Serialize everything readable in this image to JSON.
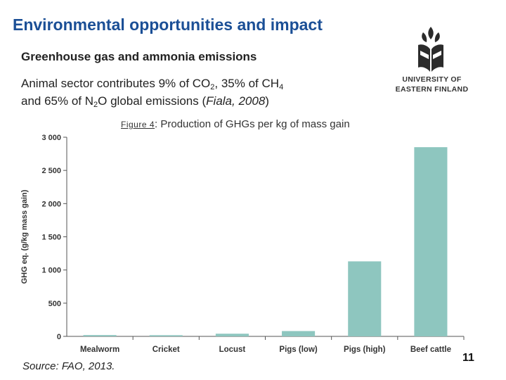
{
  "slide": {
    "title": "Environmental opportunities and impact",
    "subheading": "Greenhouse gas and ammonia emissions",
    "line1_prefix": "Animal sector contributes 9% of CO",
    "line1_sub1": "2",
    "line1_mid": ", 35% of CH",
    "line1_sub2": "4",
    "line2_prefix": "and 65% of N",
    "line2_sub": "2",
    "line2_mid": "O global emissions (",
    "line2_cite": "Fiala, 2008",
    "line2_end": ")",
    "figure_label": "Figure 4",
    "figure_caption": ": Production of GHGs per kg of mass gain",
    "source": "Source: FAO, 2013.",
    "page_number": "11"
  },
  "logo": {
    "line1": "UNIVERSITY OF",
    "line2": "EASTERN FINLAND"
  },
  "colors": {
    "title": "#1b4f96",
    "bar": "#8ec6bf",
    "axis": "#555555"
  },
  "chart_data": {
    "type": "bar",
    "categories": [
      "Mealworm",
      "Cricket",
      "Locust",
      "Pigs (low)",
      "Pigs (high)",
      "Beef cattle"
    ],
    "values": [
      20,
      18,
      40,
      80,
      1130,
      2850
    ],
    "ylabel": "GHG eq. (g/kg mass gain)",
    "ylim": [
      0,
      3000
    ],
    "yticks": [
      0,
      500,
      1000,
      1500,
      2000,
      2500,
      3000
    ],
    "ytick_labels": [
      "0",
      "500",
      "1 000",
      "1 500",
      "2 000",
      "2 500",
      "3 000"
    ],
    "grid": false,
    "legend": "none"
  }
}
